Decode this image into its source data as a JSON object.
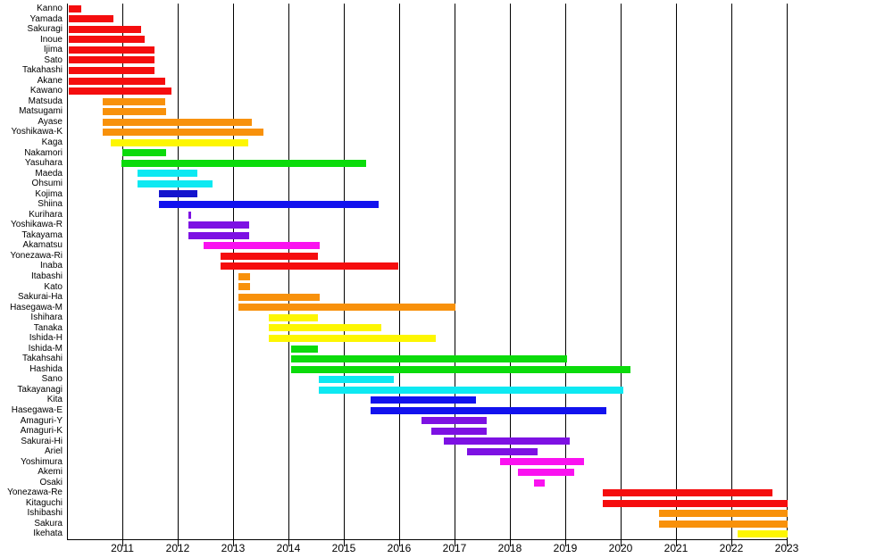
{
  "chart_data": {
    "type": "gantt",
    "title": "",
    "xlabel": "",
    "ylabel": "",
    "grid": "vertical year gridlines, bars drawn over gridlines",
    "legend": "none",
    "xlim": [
      2010,
      2023
    ],
    "x_ticks": [
      "2011",
      "2012",
      "2013",
      "2014",
      "2015",
      "2016",
      "2017",
      "2018",
      "2019",
      "2020",
      "2021",
      "2022",
      "2023"
    ],
    "palette": {
      "red": "#f50d0e",
      "orange": "#f8910b",
      "yellow": "#fdf602",
      "green": "#0bdb0b",
      "cyan": "#0de9f2",
      "blue": "#1212ee",
      "blue_dark": "#1414cd",
      "purple": "#7d11e3",
      "magenta": "#fa12f0"
    },
    "rows": [
      {
        "label": "Kanno",
        "start": 2010.02,
        "end": 2010.24,
        "color": "red"
      },
      {
        "label": "Yamada",
        "start": 2010.02,
        "end": 2010.82,
        "color": "red"
      },
      {
        "label": "Sakuragi",
        "start": 2010.02,
        "end": 2011.32,
        "color": "red"
      },
      {
        "label": "Inoue",
        "start": 2010.02,
        "end": 2011.39,
        "color": "red"
      },
      {
        "label": "Ijima",
        "start": 2010.02,
        "end": 2011.56,
        "color": "red"
      },
      {
        "label": "Sato",
        "start": 2010.02,
        "end": 2011.56,
        "color": "red"
      },
      {
        "label": "Takahashi",
        "start": 2010.02,
        "end": 2011.56,
        "color": "red"
      },
      {
        "label": "Akane",
        "start": 2010.02,
        "end": 2011.76,
        "color": "red"
      },
      {
        "label": "Kawano",
        "start": 2010.02,
        "end": 2011.87,
        "color": "red"
      },
      {
        "label": "Matsuda",
        "start": 2010.63,
        "end": 2011.76,
        "color": "orange"
      },
      {
        "label": "Matsugami",
        "start": 2010.63,
        "end": 2011.77,
        "color": "orange"
      },
      {
        "label": "Ayase",
        "start": 2010.63,
        "end": 2013.32,
        "color": "orange"
      },
      {
        "label": "Yoshikawa-K",
        "start": 2010.63,
        "end": 2013.53,
        "color": "orange"
      },
      {
        "label": "Kaga",
        "start": 2010.78,
        "end": 2013.26,
        "color": "yellow"
      },
      {
        "label": "Nakamori",
        "start": 2010.98,
        "end": 2011.77,
        "color": "green"
      },
      {
        "label": "Yasuhara",
        "start": 2010.97,
        "end": 2015.38,
        "color": "green"
      },
      {
        "label": "Maeda",
        "start": 2011.26,
        "end": 2012.34,
        "color": "cyan"
      },
      {
        "label": "Ohsumi",
        "start": 2011.26,
        "end": 2012.61,
        "color": "cyan"
      },
      {
        "label": "Kojima",
        "start": 2011.65,
        "end": 2012.34,
        "color": "blue_dark"
      },
      {
        "label": "Shiina",
        "start": 2011.65,
        "end": 2015.61,
        "color": "blue"
      },
      {
        "label": "Kurihara",
        "start": 2012.18,
        "end": 2012.22,
        "color": "purple"
      },
      {
        "label": "Yoshikawa-R",
        "start": 2012.18,
        "end": 2013.27,
        "color": "purple"
      },
      {
        "label": "Takayama",
        "start": 2012.18,
        "end": 2013.27,
        "color": "purple"
      },
      {
        "label": "Akamatsu",
        "start": 2012.45,
        "end": 2014.55,
        "color": "magenta"
      },
      {
        "label": "Yonezawa-Ri",
        "start": 2012.76,
        "end": 2014.51,
        "color": "red"
      },
      {
        "label": "Inaba",
        "start": 2012.76,
        "end": 2015.97,
        "color": "red"
      },
      {
        "label": "Itabashi",
        "start": 2013.08,
        "end": 2013.29,
        "color": "orange"
      },
      {
        "label": "Kato",
        "start": 2013.08,
        "end": 2013.29,
        "color": "orange"
      },
      {
        "label": "Sakurai-Ha",
        "start": 2013.08,
        "end": 2014.55,
        "color": "orange"
      },
      {
        "label": "Hasegawa-M",
        "start": 2013.08,
        "end": 2017.0,
        "color": "orange"
      },
      {
        "label": "Ishihara",
        "start": 2013.63,
        "end": 2014.52,
        "color": "yellow"
      },
      {
        "label": "Tanaka",
        "start": 2013.63,
        "end": 2015.66,
        "color": "yellow"
      },
      {
        "label": "Ishida-H",
        "start": 2013.63,
        "end": 2016.65,
        "color": "yellow"
      },
      {
        "label": "Ishida-M",
        "start": 2014.03,
        "end": 2014.52,
        "color": "green"
      },
      {
        "label": "Takahsahi",
        "start": 2014.03,
        "end": 2019.02,
        "color": "green"
      },
      {
        "label": "Hashida",
        "start": 2014.03,
        "end": 2020.16,
        "color": "green"
      },
      {
        "label": "Sano",
        "start": 2014.53,
        "end": 2015.89,
        "color": "cyan"
      },
      {
        "label": "Takayanagi",
        "start": 2014.53,
        "end": 2020.03,
        "color": "cyan"
      },
      {
        "label": "Kita",
        "start": 2015.47,
        "end": 2017.37,
        "color": "blue"
      },
      {
        "label": "Hasegawa-E",
        "start": 2015.47,
        "end": 2019.72,
        "color": "blue"
      },
      {
        "label": "Amaguri-Y",
        "start": 2016.38,
        "end": 2017.56,
        "color": "purple"
      },
      {
        "label": "Amaguri-K",
        "start": 2016.56,
        "end": 2017.56,
        "color": "purple"
      },
      {
        "label": "Sakurai-Hi",
        "start": 2016.79,
        "end": 2019.06,
        "color": "purple"
      },
      {
        "label": "Ariel",
        "start": 2017.21,
        "end": 2018.48,
        "color": "purple"
      },
      {
        "label": "Yoshimura",
        "start": 2017.8,
        "end": 2019.32,
        "color": "magenta"
      },
      {
        "label": "Akemi",
        "start": 2018.13,
        "end": 2019.14,
        "color": "magenta"
      },
      {
        "label": "Osaki",
        "start": 2018.42,
        "end": 2018.61,
        "color": "magenta"
      },
      {
        "label": "Yonezawa-Re",
        "start": 2019.66,
        "end": 2022.73,
        "color": "red"
      },
      {
        "label": "Kitaguchi",
        "start": 2019.66,
        "end": 2023.0,
        "color": "red"
      },
      {
        "label": "Ishibashi",
        "start": 2020.68,
        "end": 2023.0,
        "color": "orange"
      },
      {
        "label": "Sakura",
        "start": 2020.68,
        "end": 2023.0,
        "color": "orange"
      },
      {
        "label": "Ikehata",
        "start": 2022.1,
        "end": 2023.0,
        "color": "yellow"
      }
    ]
  }
}
